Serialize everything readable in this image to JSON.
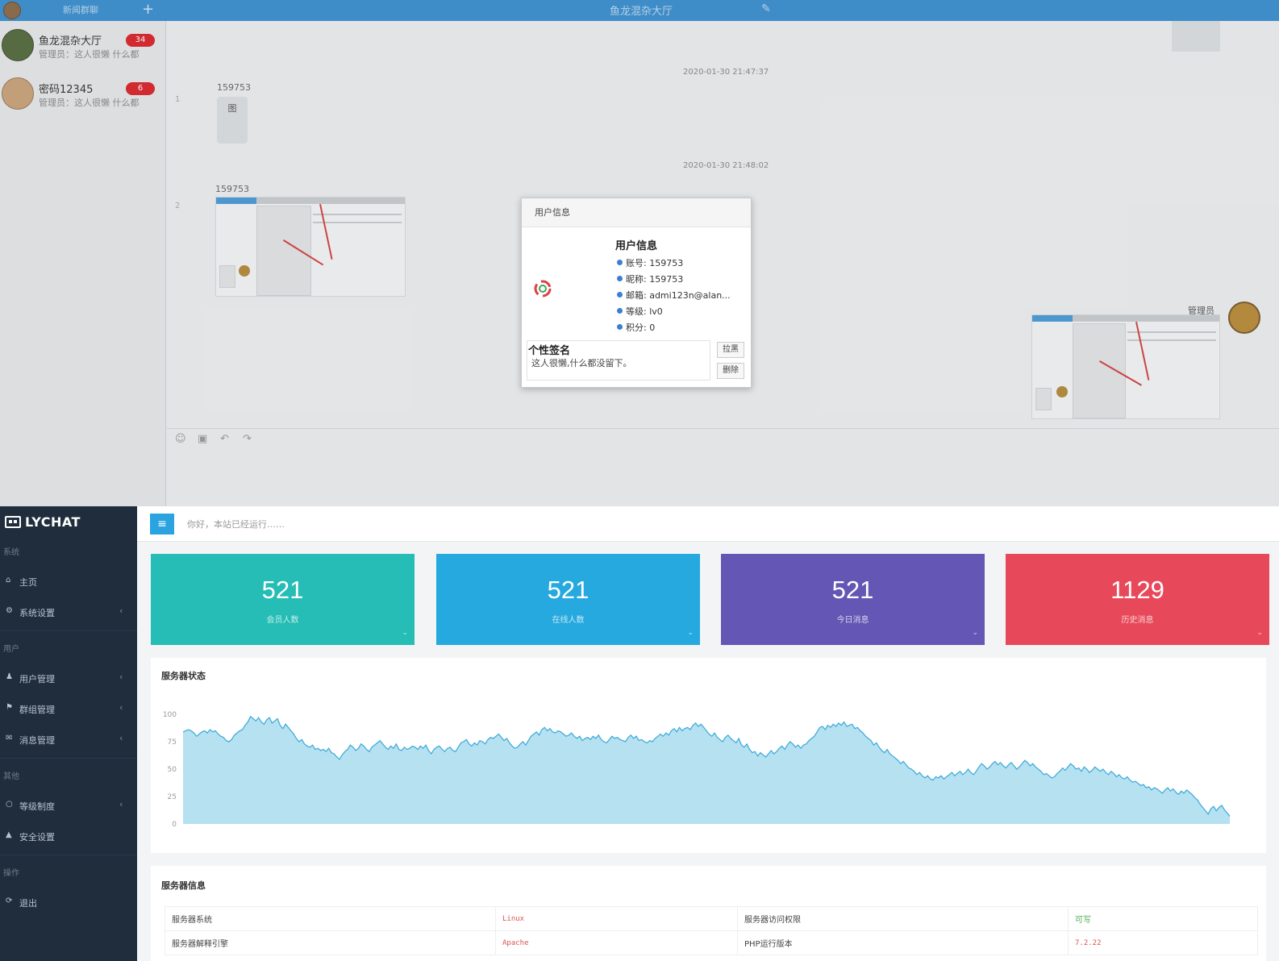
{
  "chat": {
    "tab_label": "新闻群聊",
    "room_title": "鱼龙混杂大厅",
    "conversations": [
      {
        "name": "鱼龙混杂大厅",
        "sub": "管理员：这人很懒 什么都",
        "badge": "34"
      },
      {
        "name": "密码12345",
        "sub": "管理员：这人很懒 什么都",
        "badge": "6"
      }
    ],
    "timestamps": [
      "2020-01-30 21:47:37",
      "2020-01-30 21:48:02"
    ],
    "messages": [
      {
        "index": "1",
        "sender": "159753",
        "text": "图"
      },
      {
        "index": "2",
        "sender": "159753"
      }
    ],
    "right_sender": "管理员",
    "colors": {
      "topbar": "#3a8fd0",
      "badge": "#d9242b"
    },
    "icons": [
      "emoji-icon",
      "image-icon",
      "undo-icon",
      "redo-icon"
    ]
  },
  "modal": {
    "header": "用户信息",
    "info_title": "用户信息",
    "rows": [
      "账号: 159753",
      "昵称: 159753",
      "邮箱: admi123n@alan...",
      "等级: lv0",
      "积分: 0"
    ],
    "signature_title": "个性签名",
    "signature_text": "这人很懒,什么都没留下。",
    "button_1": "拉黑",
    "button_2": "删除"
  },
  "admin": {
    "brand": "LYCHAT",
    "welcome": "你好，本站已经运行……",
    "sidebar": {
      "groups": [
        "系统",
        "用户",
        "其他",
        "操作"
      ],
      "items": [
        {
          "icon": "home-icon",
          "glyph": "⌂",
          "label": "主页",
          "has_chevron": false
        },
        {
          "icon": "settings-icon",
          "glyph": "⚙",
          "label": "系统设置",
          "has_chevron": true
        },
        {
          "icon": "user-icon",
          "glyph": "♟",
          "label": "用户管理",
          "has_chevron": true
        },
        {
          "icon": "group-icon",
          "glyph": "⚑",
          "label": "群组管理",
          "has_chevron": true
        },
        {
          "icon": "message-icon",
          "glyph": "✉",
          "label": "消息管理",
          "has_chevron": true
        },
        {
          "icon": "level-icon",
          "glyph": "○",
          "label": "等级制度",
          "has_chevron": true
        },
        {
          "icon": "lock-icon",
          "glyph": "▲",
          "label": "安全设置",
          "has_chevron": false
        },
        {
          "icon": "logout-icon",
          "glyph": "⟳",
          "label": "退出",
          "has_chevron": false
        }
      ]
    },
    "cards": [
      {
        "value": "521",
        "label": "会员人数",
        "color": "#25bdb5"
      },
      {
        "value": "521",
        "label": "在线人数",
        "color": "#26a9df"
      },
      {
        "value": "521",
        "label": "今日消息",
        "color": "#6356b4"
      },
      {
        "value": "1129",
        "label": "历史消息",
        "color": "#e8495a"
      }
    ],
    "server_status_title": "服务器状态",
    "server_info_title": "服务器信息",
    "server_info": [
      [
        "服务器系统",
        "Linux",
        "服务器访问权限",
        "可写"
      ],
      [
        "服务器解释引擎",
        "Apache",
        "PHP运行版本",
        "7.2.22"
      ]
    ]
  },
  "chart_data": {
    "type": "area",
    "title": "服务器状态",
    "ylim": [
      0,
      100
    ],
    "yticks": [
      "0",
      "25",
      "50",
      "75",
      "100"
    ],
    "grid": false,
    "color": "#a8dcef",
    "values": [
      84,
      85,
      86,
      85,
      83,
      80,
      82,
      84,
      85,
      83,
      86,
      84,
      85,
      82,
      80,
      79,
      76,
      75,
      77,
      81,
      83,
      85,
      86,
      90,
      93,
      98,
      96,
      94,
      97,
      93,
      91,
      95,
      97,
      92,
      94,
      96,
      90,
      87,
      91,
      88,
      85,
      82,
      78,
      75,
      77,
      73,
      71,
      70,
      72,
      68,
      69,
      67,
      68,
      66,
      69,
      65,
      64,
      61,
      59,
      63,
      66,
      68,
      72,
      70,
      67,
      69,
      73,
      71,
      68,
      66,
      70,
      72,
      74,
      76,
      73,
      70,
      68,
      71,
      69,
      73,
      68,
      67,
      70,
      68,
      69,
      71,
      70,
      68,
      71,
      69,
      72,
      67,
      64,
      68,
      70,
      71,
      68,
      66,
      69,
      70,
      67,
      66,
      70,
      74,
      75,
      77,
      73,
      71,
      74,
      72,
      76,
      75,
      73,
      77,
      79,
      78,
      80,
      82,
      79,
      76,
      78,
      74,
      71,
      69,
      70,
      73,
      75,
      72,
      76,
      80,
      82,
      84,
      81,
      86,
      88,
      85,
      87,
      84,
      83,
      85,
      84,
      82,
      80,
      81,
      83,
      80,
      78,
      80,
      76,
      78,
      79,
      77,
      80,
      78,
      81,
      77,
      75,
      74,
      77,
      80,
      78,
      79,
      77,
      76,
      75,
      79,
      81,
      78,
      80,
      76,
      77,
      75,
      74,
      76,
      75,
      78,
      80,
      82,
      80,
      83,
      81,
      85,
      87,
      84,
      88,
      85,
      87,
      88,
      86,
      90,
      92,
      89,
      91,
      88,
      85,
      82,
      80,
      83,
      79,
      77,
      75,
      79,
      81,
      78,
      76,
      74,
      78,
      72,
      70,
      73,
      68,
      65,
      66,
      62,
      65,
      63,
      61,
      64,
      67,
      64,
      66,
      69,
      71,
      68,
      72,
      75,
      73,
      70,
      72,
      69,
      72,
      73,
      76,
      78,
      80,
      84,
      88,
      89,
      86,
      90,
      88,
      91,
      89,
      92,
      90,
      93,
      89,
      90,
      91,
      87,
      88,
      85,
      83,
      80,
      78,
      76,
      72,
      74,
      70,
      67,
      65,
      68,
      64,
      62,
      60,
      58,
      55,
      57,
      54,
      51,
      50,
      48,
      45,
      47,
      44,
      42,
      44,
      41,
      40,
      43,
      42,
      44,
      41,
      43,
      45,
      47,
      44,
      46,
      48,
      45,
      47,
      50,
      47,
      45,
      48,
      52,
      55,
      53,
      50,
      52,
      55,
      57,
      54,
      56,
      53,
      51,
      54,
      56,
      53,
      50,
      52,
      55,
      58,
      56,
      53,
      55,
      52,
      50,
      48,
      45,
      46,
      44,
      42,
      43,
      46,
      48,
      51,
      49,
      52,
      55,
      53,
      50,
      51,
      48,
      52,
      50,
      47,
      49,
      52,
      50,
      48,
      50,
      47,
      45,
      48,
      46,
      43,
      45,
      42,
      41,
      43,
      40,
      38,
      39,
      37,
      35,
      36,
      33,
      34,
      31,
      33,
      32,
      30,
      28,
      31,
      33,
      30,
      32,
      29,
      27,
      30,
      28,
      31,
      29,
      27,
      24,
      22,
      18,
      15,
      12,
      9,
      14,
      16,
      12,
      15,
      17,
      13,
      10,
      7
    ]
  }
}
